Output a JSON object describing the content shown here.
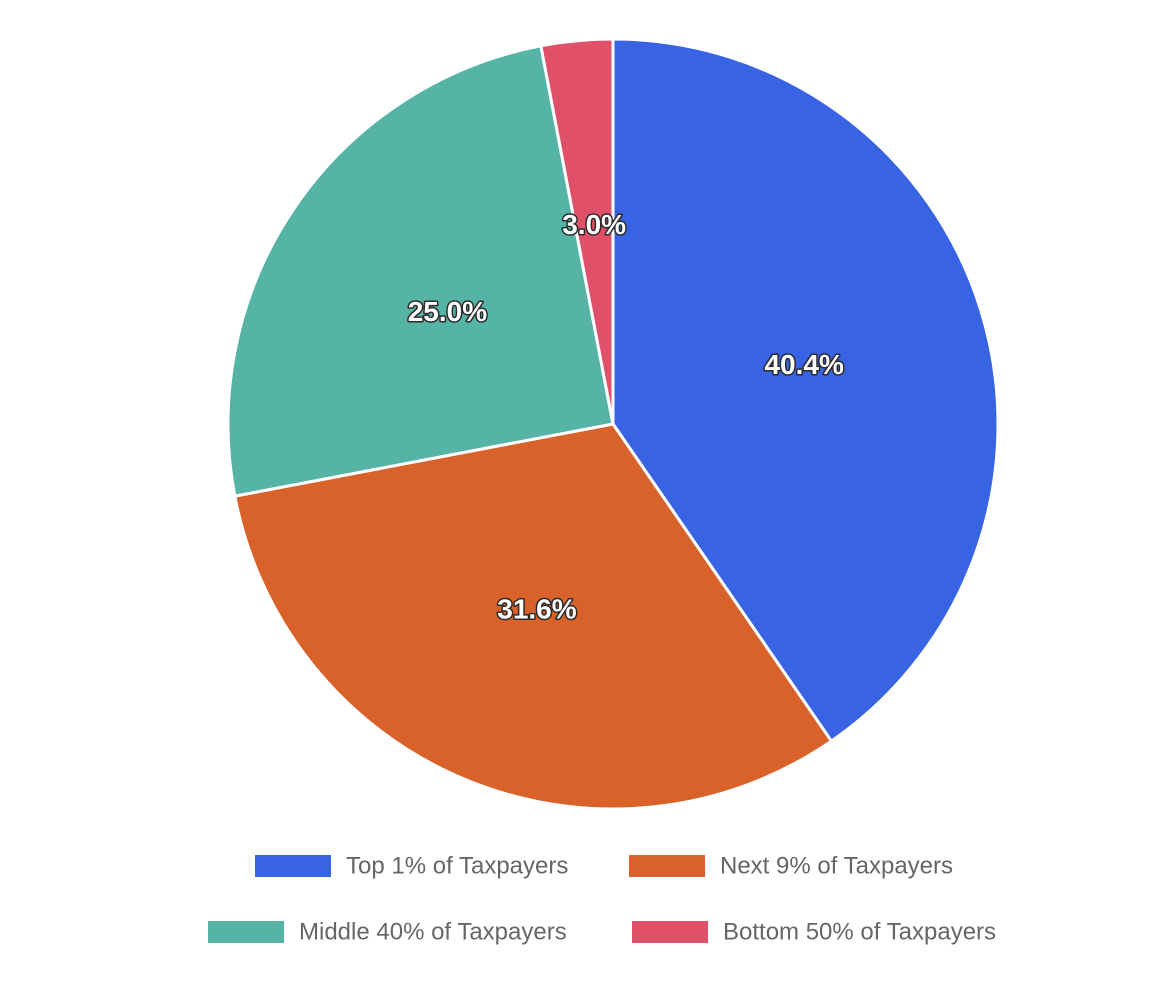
{
  "chart_data": {
    "type": "pie",
    "categories": [
      "Top 1% of Taxpayers",
      "Next 9% of Taxpayers",
      "Middle 40% of Taxpayers",
      "Bottom 50% of Taxpayers"
    ],
    "values": [
      40.4,
      31.6,
      25.0,
      3.0
    ],
    "labels": [
      "40.4%",
      "31.6%",
      "25.0%",
      "3.0%"
    ],
    "colors": [
      "#3863e3",
      "#d8622a",
      "#55b4a6",
      "#e05068"
    ],
    "start_angle": "top",
    "direction": "clockwise",
    "legend_position": "bottom"
  }
}
